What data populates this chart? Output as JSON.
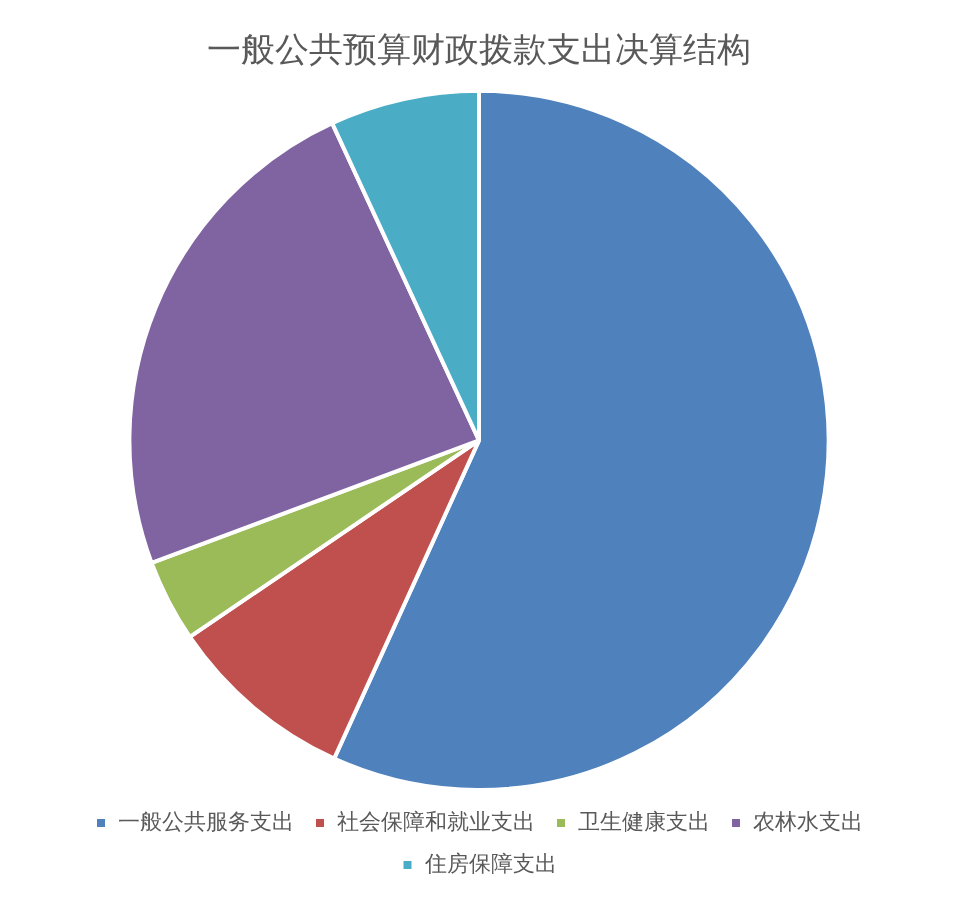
{
  "chart_data": {
    "type": "pie",
    "title": "一般公共预算财政拨款支出决算结构",
    "categories": [
      "一般公共服务支出",
      "社会保障和就业支出",
      "卫生健康支出",
      "农林水支出",
      "住房保障支出"
    ],
    "values": [
      56.8,
      8.7,
      3.8,
      23.8,
      6.9
    ],
    "colors": [
      "#4f81bd",
      "#c0504d",
      "#9bbb59",
      "#8064a2",
      "#4bacc6"
    ],
    "legend": "bottom"
  }
}
